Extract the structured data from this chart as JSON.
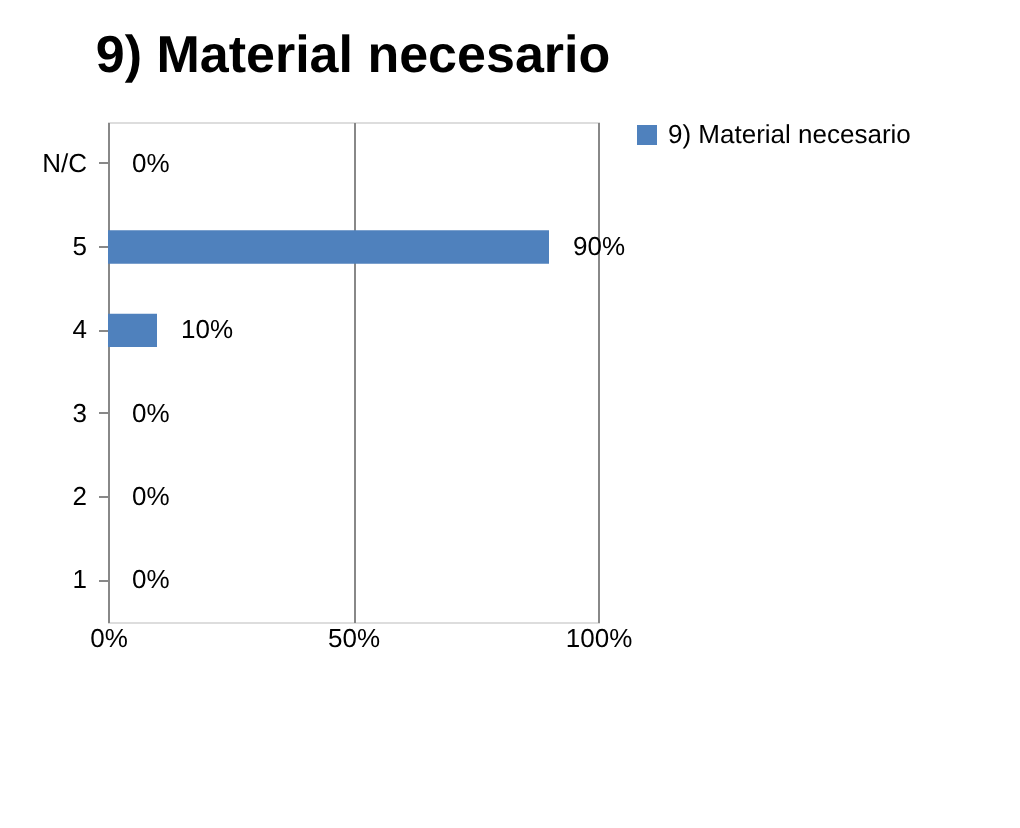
{
  "chart_data": {
    "type": "bar",
    "title": "9) Material necesario",
    "orientation": "horizontal",
    "categories": [
      "N/C",
      "5",
      "4",
      "3",
      "2",
      "1"
    ],
    "series": [
      {
        "name": "9) Material necesario",
        "color": "#4f81bd",
        "values": [
          0,
          90,
          10,
          0,
          0,
          0
        ],
        "value_labels": [
          "0%",
          "90%",
          "10%",
          "0%",
          "0%",
          "0%"
        ]
      }
    ],
    "xlim": [
      0,
      100
    ],
    "xticks": [
      {
        "value": 0,
        "label": "0%"
      },
      {
        "value": 50,
        "label": "50%"
      },
      {
        "value": 100,
        "label": "100%"
      }
    ],
    "grid": "x",
    "legend": "right"
  }
}
